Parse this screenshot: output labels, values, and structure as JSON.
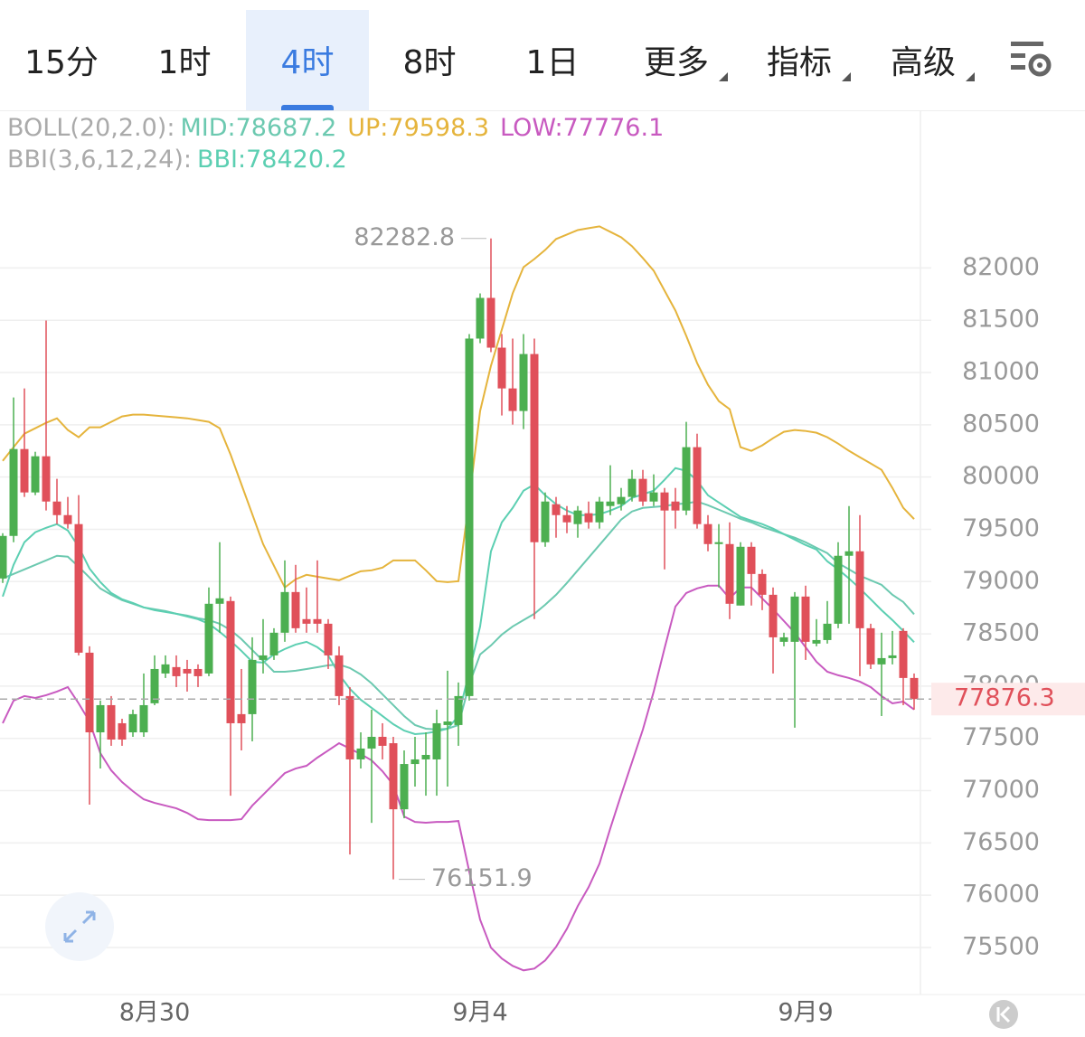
{
  "tabs": [
    "15分",
    "1时",
    "4时",
    "8时",
    "1日",
    "更多",
    "指标",
    "高级"
  ],
  "chart_data": {
    "type": "candlestick",
    "categories": [
      null,
      null,
      null,
      null,
      null,
      null,
      null,
      null,
      null,
      null,
      null,
      null,
      null,
      null,
      "8月30",
      null,
      null,
      null,
      null,
      null,
      null,
      null,
      null,
      null,
      null,
      null,
      null,
      null,
      null,
      null,
      null,
      null,
      null,
      null,
      null,
      null,
      null,
      null,
      null,
      null,
      null,
      null,
      null,
      null,
      "9月4",
      null,
      null,
      null,
      null,
      null,
      null,
      null,
      null,
      null,
      null,
      null,
      null,
      null,
      null,
      null,
      null,
      null,
      null,
      null,
      null,
      null,
      null,
      null,
      null,
      null,
      null,
      null,
      null,
      null,
      "9月9",
      null,
      null,
      null,
      null,
      null,
      null,
      null,
      null,
      null,
      null
    ],
    "open": [
      79030,
      79437,
      80268,
      79853,
      80199,
      79766,
      79636,
      79550,
      78320,
      77558,
      77818,
      77645,
      77558,
      77558,
      77836,
      78121,
      78182,
      78164,
      78164,
      78121,
      78788,
      78814,
      77732,
      77732,
      78251,
      78294,
      78511,
      78900,
      78641,
      78641,
      78597,
      78294,
      77905,
      77299,
      77403,
      77515,
      77454,
      76822,
      77255,
      77299,
      77299,
      77628,
      77628,
      77905,
      81325,
      81714,
      81238,
      80848,
      80632,
      81177,
      79377,
      79740,
      79636,
      79550,
      79654,
      79567,
      79723,
      79740,
      79810,
      79983,
      79766,
      79853,
      79766,
      79680,
      80286,
      79550,
      79359,
      79359,
      78771,
      79333,
      79073,
      78874,
      78424,
      78424,
      78857,
      78407,
      78441,
      78597,
      79247,
      79290,
      78554,
      78208,
      78268,
      78528,
      78078
    ],
    "high": [
      79463,
      80762,
      80848,
      80242,
      81498,
      79983,
      79810,
      79827,
      78381,
      77862,
      77905,
      77688,
      77775,
      78121,
      78294,
      78294,
      78294,
      78251,
      78208,
      78944,
      79377,
      78857,
      78164,
      78467,
      78641,
      78554,
      79203,
      79160,
      78944,
      79203,
      78641,
      78381,
      77991,
      77558,
      77775,
      77645,
      77515,
      77385,
      77515,
      77558,
      77775,
      78147,
      78035,
      81368,
      81757,
      82282.8,
      81368,
      81325,
      81368,
      81325,
      79853,
      79810,
      79723,
      79723,
      79766,
      79810,
      80113,
      79896,
      80069,
      80069,
      80026,
      79896,
      79896,
      80528,
      80415,
      79636,
      79550,
      79567,
      79377,
      79377,
      79117,
      78944,
      78511,
      78900,
      78961,
      78641,
      78814,
      79377,
      79723,
      79636,
      78597,
      78511,
      78528,
      78554,
      78121
    ],
    "low": [
      78987,
      79377,
      79810,
      79827,
      79680,
      79550,
      79507,
      78294,
      76866,
      77212,
      77429,
      77429,
      77515,
      77515,
      77818,
      78078,
      77991,
      77948,
      77991,
      78095,
      78511,
      76952,
      77385,
      77472,
      78121,
      78251,
      78424,
      78511,
      78511,
      78511,
      78164,
      77818,
      76389,
      77212,
      76692,
      77299,
      76151.9,
      76736,
      77039,
      76952,
      76952,
      77039,
      77429,
      77862,
      81281,
      81195,
      80589,
      80502,
      80459,
      78641,
      79333,
      79420,
      79463,
      79420,
      79507,
      79507,
      79636,
      79680,
      79766,
      79723,
      79723,
      79117,
      79507,
      79636,
      79507,
      79290,
      78944,
      78641,
      78771,
      78771,
      78727,
      78121,
      78381,
      77602,
      78251,
      78381,
      78407,
      78554,
      78597,
      78095,
      78164,
      77714,
      78208,
      77818,
      77775
    ],
    "close": [
      79437,
      80268,
      79853,
      80199,
      79766,
      79636,
      79550,
      78320,
      77558,
      77818,
      77489,
      77489,
      77732,
      77818,
      78164,
      78208,
      78095,
      78121,
      78095,
      78788,
      78840,
      77645,
      77645,
      78251,
      78294,
      78511,
      78900,
      78554,
      78597,
      78597,
      78294,
      77905,
      77299,
      77403,
      77515,
      77429,
      76822,
      77255,
      77299,
      77342,
      77645,
      77662,
      77905,
      81325,
      81714,
      81238,
      80848,
      80632,
      81177,
      79377,
      79766,
      79636,
      79567,
      79680,
      79567,
      79766,
      79766,
      79810,
      79983,
      79766,
      79853,
      79680,
      79680,
      80286,
      79550,
      79359,
      79377,
      78788,
      79333,
      79073,
      78874,
      78467,
      78467,
      78857,
      78424,
      78441,
      78597,
      79247,
      79290,
      78554,
      78208,
      78268,
      78294,
      78078,
      77876.3
    ],
    "up_color": "#4caf50",
    "down_color": "#e0505a",
    "boll": {
      "label": "BOLL(20,2.0):",
      "series": [
        {
          "name": "MID:",
          "color": "#6cc9b0",
          "values": [
            79030,
            79073,
            79117,
            79160,
            79203,
            79247,
            79238,
            79142,
            79039,
            78934,
            78874,
            78822,
            78788,
            78753,
            78736,
            78718,
            78692,
            78675,
            78649,
            78632,
            78597,
            78537,
            78450,
            78346,
            78242,
            78138,
            78138,
            78147,
            78164,
            78181,
            78199,
            78207,
            78173,
            78112,
            78026,
            77922,
            77818,
            77714,
            77628,
            77593,
            77585,
            77593,
            77628,
            78017,
            78303,
            78389,
            78493,
            78571,
            78632,
            78692,
            78779,
            78874,
            78987,
            79108,
            79229,
            79350,
            79471,
            79593,
            79671,
            79705,
            79714,
            79723,
            79740,
            79749,
            79766,
            79731,
            79688,
            79645,
            79601,
            79567,
            79523,
            79489,
            79454,
            79420,
            79376,
            79324,
            79272,
            79177,
            79117,
            79056,
            79013,
            78969,
            78874,
            78805,
            78687.2
          ]
        },
        {
          "name": "UP:",
          "color": "#e5b43c",
          "values": [
            80155,
            80286,
            80415,
            80467,
            80519,
            80562,
            80450,
            80381,
            80476,
            80476,
            80528,
            80580,
            80597,
            80597,
            80589,
            80580,
            80571,
            80562,
            80545,
            80528,
            80467,
            80216,
            79930,
            79645,
            79359,
            79151,
            78944,
            79022,
            79065,
            79047,
            79030,
            79013,
            79056,
            79099,
            79108,
            79134,
            79203,
            79203,
            79203,
            79108,
            79004,
            78995,
            79004,
            79783,
            80632,
            81065,
            81411,
            81757,
            82008,
            82086,
            82173,
            82277,
            82320,
            82363,
            82381,
            82398,
            82346,
            82294,
            82208,
            82095,
            81974,
            81783,
            81593,
            81351,
            81091,
            80883,
            80727,
            80649,
            80286,
            80251,
            80303,
            80372,
            80433,
            80450,
            80441,
            80424,
            80381,
            80320,
            80251,
            80190,
            80130,
            80069,
            79896,
            79706,
            79598.3
          ]
        },
        {
          "name": "LOW:",
          "color": "#c85ac0",
          "values": [
            77645,
            77861,
            77905,
            77887,
            77913,
            77948,
            77991,
            77835,
            77662,
            77359,
            77194,
            77082,
            76995,
            76917,
            76883,
            76857,
            76831,
            76787,
            76727,
            76718,
            76718,
            76718,
            76727,
            76857,
            76961,
            77065,
            77168,
            77212,
            77238,
            77316,
            77385,
            77454,
            77402,
            77350,
            77290,
            77186,
            77056,
            76753,
            76701,
            76693,
            76701,
            76701,
            76710,
            76225,
            75766,
            75498,
            75394,
            75324,
            75281,
            75298,
            75376,
            75506,
            75679,
            75896,
            76077,
            76302,
            76640,
            76961,
            77272,
            77584,
            77948,
            78363,
            78761,
            78891,
            78935,
            78961,
            78961,
            78839,
            78944,
            78944,
            78839,
            78736,
            78623,
            78510,
            78372,
            78233,
            78138,
            78104,
            78078,
            78043,
            77991,
            77905,
            77835,
            77852,
            77776.1
          ]
        }
      ]
    },
    "bbi": {
      "label": "BBI(3,6,12,24):",
      "series": [
        {
          "name": "BBI:",
          "color": "#5ccfb2",
          "values": [
            78857,
            79160,
            79377,
            79472,
            79515,
            79550,
            79489,
            79333,
            79125,
            78995,
            78891,
            78831,
            78796,
            78753,
            78727,
            78709,
            78692,
            78666,
            78640,
            78597,
            78519,
            78433,
            78337,
            78233,
            78225,
            78303,
            78355,
            78398,
            78424,
            78372,
            78294,
            78112,
            77974,
            77870,
            77792,
            77714,
            77636,
            77575,
            77541,
            77549,
            77567,
            77593,
            77714,
            78138,
            78571,
            79290,
            79567,
            79705,
            79870,
            79930,
            79826,
            79740,
            79679,
            79636,
            79636,
            79645,
            79679,
            79723,
            79801,
            79835,
            79870,
            79974,
            80086,
            80060,
            79965,
            79826,
            79757,
            79688,
            79619,
            79584,
            79550,
            79507,
            79454,
            79402,
            79350,
            79307,
            79194,
            79117,
            79030,
            78934,
            78831,
            78727,
            78632,
            78528,
            78420.2
          ]
        }
      ]
    },
    "ylim": [
      75050,
      83500
    ],
    "yticks": [
      75500,
      76000,
      76500,
      77000,
      77500,
      78000,
      78500,
      79000,
      79500,
      80000,
      80500,
      81000,
      81500,
      82000
    ],
    "grid": true
  }
}
